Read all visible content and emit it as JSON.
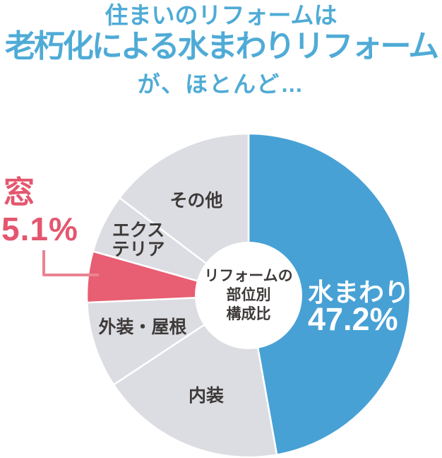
{
  "title": {
    "line1": "住まいのリフォームは",
    "line2": "老朽化による水まわりリフォーム",
    "line3": "が、ほとんど…",
    "color": "#4fabd6"
  },
  "callout": {
    "label": "窓",
    "value": "5.1%",
    "color": "#e4566e",
    "leader_color": "#ea8392"
  },
  "chart_data": {
    "type": "pie",
    "title": "リフォームの部位別構成比",
    "center_label_lines": [
      "リフォームの",
      "部位別",
      "構成比"
    ],
    "unit": "%",
    "start_angle_deg": 0,
    "direction": "clockwise",
    "donut_hole_ratio": 0.33,
    "legend_position": "labels-inside-slices",
    "segments": [
      {
        "key": "mizumawari",
        "label": "水まわり",
        "value": 47.2,
        "display_value": "47.2%",
        "color": "#47a1d5",
        "value_labeled": true
      },
      {
        "key": "naisou",
        "label": "内装",
        "value": 18.5,
        "color": "#dcdde2",
        "value_labeled": false
      },
      {
        "key": "gaisou-yane",
        "label": "外装・屋根",
        "value": 8.6,
        "color": "#dcdde2",
        "value_labeled": false
      },
      {
        "key": "mado",
        "label": "窓",
        "value": 5.1,
        "display_value": "5.1%",
        "color": "#e85e72",
        "value_labeled": true
      },
      {
        "key": "exterior",
        "label": "エクステリア",
        "label_lines": [
          "エクス",
          "テリア"
        ],
        "value": 5.9,
        "color": "#dcdde2",
        "value_labeled": false
      },
      {
        "key": "sonota",
        "label": "その他",
        "value": 14.7,
        "color": "#dcdde2",
        "value_labeled": false
      }
    ],
    "values_estimated_from_angles": [
      "内装",
      "外装・屋根",
      "エクステリア",
      "その他"
    ]
  }
}
